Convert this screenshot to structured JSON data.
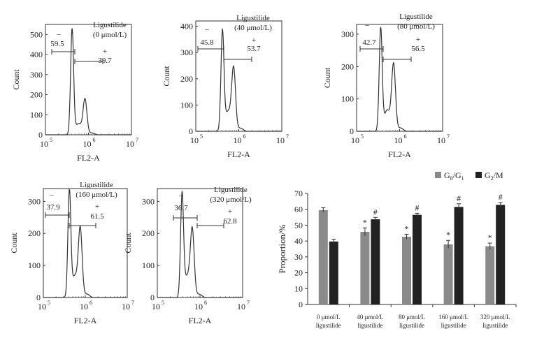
{
  "chart_data": [
    {
      "type": "histogram",
      "title": "Ligustilide",
      "concentration": "(0 μmol/L)",
      "xlabel": "FL2-A",
      "ylabel": "Count",
      "xscale": "log",
      "x_ticks": [
        "10",
        "10",
        "10"
      ],
      "x_tick_exps": [
        "5",
        "6",
        "7"
      ],
      "y_ticks": [
        "0",
        "100",
        "200",
        "300",
        "400",
        "500"
      ],
      "ylim": [
        0,
        550
      ],
      "gates": [
        {
          "name": "minus",
          "sign": "–",
          "value": "59.5"
        },
        {
          "name": "plus",
          "sign": "+",
          "value": "39.7"
        }
      ],
      "peaks": [
        {
          "log_fl2": 5.62,
          "count": 525
        },
        {
          "log_fl2": 5.92,
          "count": 175
        }
      ]
    },
    {
      "type": "histogram",
      "title": "Ligustilide",
      "concentration": "(40 μmol/L)",
      "xlabel": "FL2-A",
      "ylabel": "Count",
      "xscale": "log",
      "x_ticks": [
        "10",
        "10",
        "10"
      ],
      "x_tick_exps": [
        "5",
        "6",
        "7"
      ],
      "y_ticks": [
        "0",
        "100",
        "200",
        "300",
        "400"
      ],
      "ylim": [
        0,
        420
      ],
      "gates": [
        {
          "name": "minus",
          "sign": "–",
          "value": "45.8"
        },
        {
          "name": "plus",
          "sign": "+",
          "value": "53.7"
        }
      ],
      "peaks": [
        {
          "log_fl2": 5.62,
          "count": 375
        },
        {
          "log_fl2": 5.88,
          "count": 235
        }
      ]
    },
    {
      "type": "histogram",
      "title": "Ligustilide",
      "concentration": "(80 μmol/L)",
      "xlabel": "FL2-A",
      "ylabel": "Count",
      "xscale": "log",
      "x_ticks": [
        "10",
        "10",
        "10"
      ],
      "x_tick_exps": [
        "5",
        "6",
        "7"
      ],
      "y_ticks": [
        "0",
        "100",
        "200",
        "300"
      ],
      "ylim": [
        0,
        330
      ],
      "gates": [
        {
          "name": "minus",
          "sign": "–",
          "value": "42.7"
        },
        {
          "name": "plus",
          "sign": "+",
          "value": "56.5"
        }
      ],
      "peaks": [
        {
          "log_fl2": 5.56,
          "count": 315
        },
        {
          "log_fl2": 5.86,
          "count": 205
        }
      ]
    },
    {
      "type": "histogram",
      "title": "Ligustilide",
      "concentration": "(160 μmol/L)",
      "xlabel": "FL2-A",
      "ylabel": "Count",
      "xscale": "log",
      "x_ticks": [
        "10",
        "10",
        "10"
      ],
      "x_tick_exps": [
        "5",
        "6",
        "7"
      ],
      "y_ticks": [
        "0",
        "100",
        "200",
        "300"
      ],
      "ylim": [
        0,
        340
      ],
      "gates": [
        {
          "name": "minus",
          "sign": "–",
          "value": "37.9"
        },
        {
          "name": "plus",
          "sign": "+",
          "value": "61.5"
        }
      ],
      "peaks": [
        {
          "log_fl2": 5.62,
          "count": 330
        },
        {
          "log_fl2": 5.88,
          "count": 210
        }
      ]
    },
    {
      "type": "histogram",
      "title": "Ligustilide",
      "concentration": "(320 μmol/L)",
      "xlabel": "FL2-A",
      "ylabel": "Count",
      "xscale": "log",
      "x_ticks": [
        "10",
        "10",
        "10"
      ],
      "x_tick_exps": [
        "5",
        "6",
        "7"
      ],
      "y_ticks": [
        "0",
        "100",
        "200",
        "300"
      ],
      "ylim": [
        0,
        340
      ],
      "gates": [
        {
          "name": "minus",
          "sign": "–",
          "value": "36.7"
        },
        {
          "name": "plus",
          "sign": "+",
          "value": "62.8"
        }
      ],
      "peaks": [
        {
          "log_fl2": 5.58,
          "count": 315
        },
        {
          "log_fl2": 5.82,
          "count": 205
        }
      ]
    },
    {
      "type": "bar",
      "ylabel": "Proportion/%",
      "ylim": [
        0,
        70
      ],
      "y_ticks": [
        "0",
        "10",
        "20",
        "30",
        "40",
        "50",
        "60",
        "70"
      ],
      "categories": [
        [
          "0 μmol/L",
          "ligustilide"
        ],
        [
          "40 μmol/L",
          "ligustilide"
        ],
        [
          "80 μmol/L",
          "ligustilide"
        ],
        [
          "160 μmol/L",
          "ligustilide"
        ],
        [
          "320 μmol/L",
          "ligustilide"
        ]
      ],
      "series": [
        {
          "name": "G0/G1",
          "label_main": "G",
          "label_sub1": "0",
          "label_mid": "/G",
          "label_sub2": "1",
          "color": "#8a8a8a",
          "values": [
            59.5,
            45.8,
            42.7,
            37.9,
            36.7
          ],
          "errors": [
            1.5,
            2.5,
            1.5,
            2.5,
            2.0
          ],
          "markers": [
            "",
            "*",
            "*",
            "*",
            "*"
          ]
        },
        {
          "name": "G2/M",
          "label_main": "G",
          "label_sub1": "2",
          "label_mid": "/M",
          "label_sub2": "",
          "color": "#222222",
          "values": [
            39.7,
            53.7,
            56.5,
            61.5,
            62.8
          ],
          "errors": [
            1.5,
            1.2,
            1.0,
            2.0,
            1.5
          ],
          "markers": [
            "",
            "#",
            "#",
            "#",
            "#"
          ]
        }
      ]
    }
  ]
}
